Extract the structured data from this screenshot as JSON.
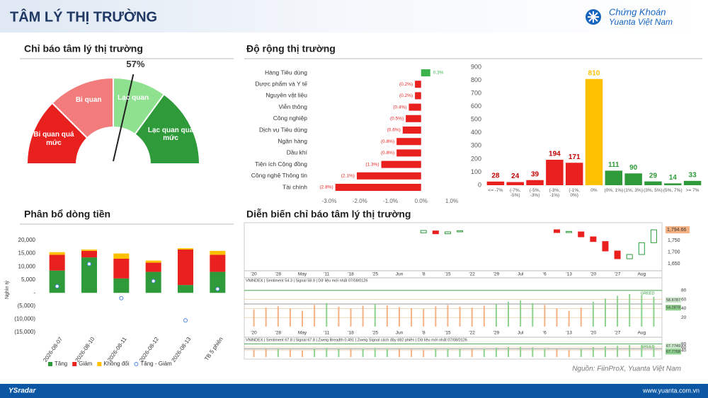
{
  "header": {
    "title": "TÂM LÝ THỊ TRƯỜNG",
    "logo_line1": "Chứng Khoán",
    "logo_line2": "Yuanta Việt Nam"
  },
  "footer": {
    "brand": "YSradar",
    "website": "www.yuanta.com.vn",
    "source": "Nguồn: FiinProX, Yuanta Việt Nam"
  },
  "chart_data": [
    {
      "type": "gauge",
      "title": "Chỉ báo tâm lý thị trường",
      "value": 57,
      "value_label": "57%",
      "bins": [
        0,
        25,
        50,
        70,
        100
      ],
      "labels": [
        "Bi quan quá mức",
        "Bi quan",
        "Lạc quan",
        "Lạc quan quá mức"
      ],
      "colors": [
        "#e8201e",
        "#f27b7b",
        "#8fe08f",
        "#2e9a3a"
      ]
    },
    {
      "type": "hbar",
      "title": "Độ rộng thị trường",
      "categories": [
        "Hàng Tiêu dùng",
        "Dược phẩm và Y tế",
        "Nguyên vật liệu",
        "Viễn thông",
        "Công nghiệp",
        "Dịch vụ Tiêu dùng",
        "Ngân hàng",
        "Dầu khí",
        "Tiện ích Cộng đồng",
        "Công nghệ Thông tin",
        "Tài chính"
      ],
      "values": [
        0.3,
        -0.2,
        -0.2,
        -0.4,
        -0.5,
        -0.6,
        -0.8,
        -0.8,
        -1.3,
        -2.1,
        -2.8
      ],
      "value_labels": [
        "0.3%",
        "(0.2%)",
        "(0.2%)",
        "(0.4%)",
        "(0.5%)",
        "(0.6%)",
        "(0.8%)",
        "(0.8%)",
        "(1.3%)",
        "(2.1%)",
        "(2.8%)"
      ],
      "color_positive": "#3cb44b",
      "color_negative": "#e8201e",
      "xlim": [
        -3,
        1
      ],
      "xticks": [
        {
          "value": -3,
          "label": "-3.0%"
        },
        {
          "value": -2,
          "label": "-2.0%"
        },
        {
          "value": -1,
          "label": "-1.0%"
        },
        {
          "value": 0,
          "label": "0.0%"
        },
        {
          "value": 1,
          "label": "1.0%"
        }
      ]
    },
    {
      "type": "bar",
      "categories": [
        "<= -7%",
        "(-7%, -5%)",
        "(-5%, -3%)",
        "(-3%, -1%)",
        "(-1%, 0%)",
        "0%",
        "(0%, 1%)",
        "(1%, 3%)",
        "(3%, 5%)",
        "(5%, 7%)",
        ">= 7%"
      ],
      "values": [
        28,
        24,
        39,
        194,
        171,
        810,
        111,
        90,
        29,
        14,
        33
      ],
      "colors": [
        "#e8201e",
        "#e8201e",
        "#e8201e",
        "#e8201e",
        "#e8201e",
        "#ffc000",
        "#2e9a3a",
        "#2e9a3a",
        "#2e9a3a",
        "#2e9a3a",
        "#2e9a3a"
      ],
      "label_colors": [
        "#c00000",
        "#c00000",
        "#c00000",
        "#c00000",
        "#c00000",
        "#ffc000",
        "#2e9a3a",
        "#2e9a3a",
        "#2e9a3a",
        "#2e9a3a",
        "#2e9a3a"
      ],
      "ylim": [
        0,
        900
      ],
      "yticks": [
        0,
        100,
        200,
        300,
        400,
        500,
        600,
        700,
        800,
        900
      ]
    },
    {
      "type": "stacked_bar",
      "title": "Phân bổ dòng tiền",
      "y_label": "Nghìn tỷ",
      "categories": [
        "2026-08-07",
        "2026-08-10",
        "2026-08-11",
        "2026-08-12",
        "2026-08-13",
        "TB 5 phiên"
      ],
      "series": [
        {
          "name": "Tăng",
          "color": "#2e9a3a",
          "values": [
            8500,
            13500,
            5500,
            8000,
            3000,
            8000
          ]
        },
        {
          "name": "Giảm",
          "color": "#e8201e",
          "values": [
            6000,
            2500,
            7500,
            3500,
            13500,
            6500
          ]
        },
        {
          "name": "Không đổi",
          "color": "#ffc000",
          "values": [
            1000,
            500,
            2000,
            800,
            500,
            1500
          ]
        },
        {
          "name": "Tăng - Giảm",
          "color": "#4a86e8",
          "kind": "scatter",
          "values": [
            2500,
            11000,
            -2000,
            4500,
            -10500,
            1500
          ]
        }
      ],
      "ylim": [
        -15000,
        20000
      ],
      "yticks": [
        {
          "value": 20000,
          "label": "20,000"
        },
        {
          "value": 15000,
          "label": "15,000"
        },
        {
          "value": 10000,
          "label": "10,000"
        },
        {
          "value": 5000,
          "label": "5,000"
        },
        {
          "value": 0,
          "label": "-"
        },
        {
          "value": -5000,
          "label": "(5,000)"
        },
        {
          "value": -10000,
          "label": "(10,000)"
        },
        {
          "value": -15000,
          "label": "(15,000)"
        }
      ]
    },
    {
      "type": "candlestick",
      "title": "Diễn biến chỉ báo tâm lý thị trường",
      "categories": [
        "'20",
        null,
        "'28",
        null,
        "May",
        null,
        "'11",
        null,
        "'18",
        null,
        "'25",
        null,
        "Jun",
        null,
        "'8",
        null,
        "'15",
        null,
        "'22",
        null,
        "'29",
        null,
        "Jul",
        null,
        "'6",
        null,
        "'13",
        null,
        "'20",
        null,
        "'27",
        null,
        "Aug",
        null
      ],
      "open": [
        null,
        null,
        null,
        null,
        null,
        null,
        null,
        null,
        null,
        null,
        null,
        null,
        null,
        null,
        1782,
        1790,
        1778,
        1786,
        null,
        null,
        null,
        null,
        null,
        null,
        null,
        1795,
        1783,
        1786,
        1765,
        1745,
        1705,
        1672,
        1690,
        1740
      ],
      "close": [
        null,
        null,
        null,
        null,
        null,
        null,
        null,
        null,
        null,
        null,
        null,
        null,
        null,
        null,
        1792,
        1778,
        1786,
        1791,
        null,
        null,
        null,
        null,
        null,
        null,
        null,
        1783,
        1788,
        1765,
        1745,
        1705,
        1672,
        1690,
        1740,
        1794.66
      ],
      "last_label": "1,794.66",
      "up_color": "#2e9a3a",
      "down_color": "#e8201e",
      "ylim": [
        1630,
        1810
      ],
      "yticks": [
        {
          "value": 1650,
          "label": "1,650"
        },
        {
          "value": 1700,
          "label": "1,700"
        },
        {
          "value": 1750,
          "label": "1,750"
        },
        {
          "value": 1800,
          "label": "1,800"
        }
      ],
      "panels": [
        {
          "caption": "VNINDEX | Sentiment 54.3 | Signal 58.9 | Dữ liệu mới nhất 07/08/0126",
          "ylim": [
            0,
            100
          ],
          "yticks": [
            20,
            40,
            60,
            80
          ],
          "greed_level": 80,
          "greed_label": "GREED",
          "threshold": 50,
          "above_color": "#8fd18f",
          "below_color": "#f4b183",
          "values": [
            38,
            42,
            45,
            40,
            35,
            48,
            52,
            44,
            40,
            46,
            50,
            47,
            43,
            41,
            39,
            45,
            48,
            44,
            42,
            46,
            50,
            55,
            58,
            52,
            48,
            40,
            35,
            42,
            55,
            62,
            68,
            72,
            70,
            66
          ],
          "tags": [
            58.8787,
            54.2878
          ]
        },
        {
          "caption": "VNINDEX | Sentiment 67.8 | Signal 67.8 | Zweig Breadth 0.491 | Zweig Signal cách đây 682 phiên | Dữ liệu mới nhất 07/08/0126",
          "ylim": [
            0,
            100
          ],
          "yticks": [
            40,
            60,
            80
          ],
          "greed_level": 80,
          "greed_label": "GREED",
          "threshold": 50,
          "above_color": "#8fd18f",
          "below_color": "#f4b183",
          "values": [
            45,
            48,
            50,
            46,
            42,
            50,
            55,
            50,
            47,
            52,
            55,
            52,
            48,
            46,
            44,
            50,
            53,
            50,
            48,
            52,
            56,
            60,
            63,
            58,
            54,
            48,
            44,
            50,
            60,
            66,
            70,
            74,
            72,
            68
          ],
          "tags": [
            67.7749,
            67.7768
          ]
        }
      ]
    }
  ]
}
